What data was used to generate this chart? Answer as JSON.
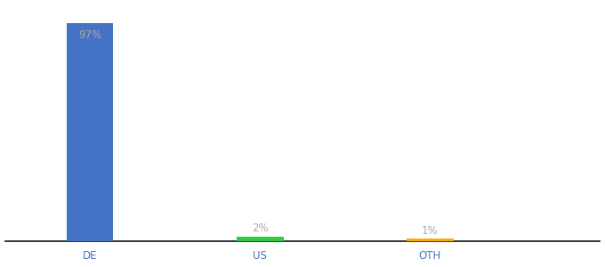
{
  "categories": [
    "DE",
    "US",
    "OTH"
  ],
  "values": [
    97,
    2,
    1
  ],
  "labels": [
    "97%",
    "2%",
    "1%"
  ],
  "bar_colors": [
    "#4472c4",
    "#2ecc40",
    "#ffaa00"
  ],
  "background_color": "#ffffff",
  "ylim": [
    0,
    105
  ],
  "label_color": "#aaaaaa",
  "label_fontsize": 8.5,
  "tick_fontsize": 8.5,
  "tick_color": "#4472c4",
  "bar_width": 0.55,
  "x_positions": [
    1,
    3,
    5
  ],
  "xlim": [
    0,
    7
  ]
}
